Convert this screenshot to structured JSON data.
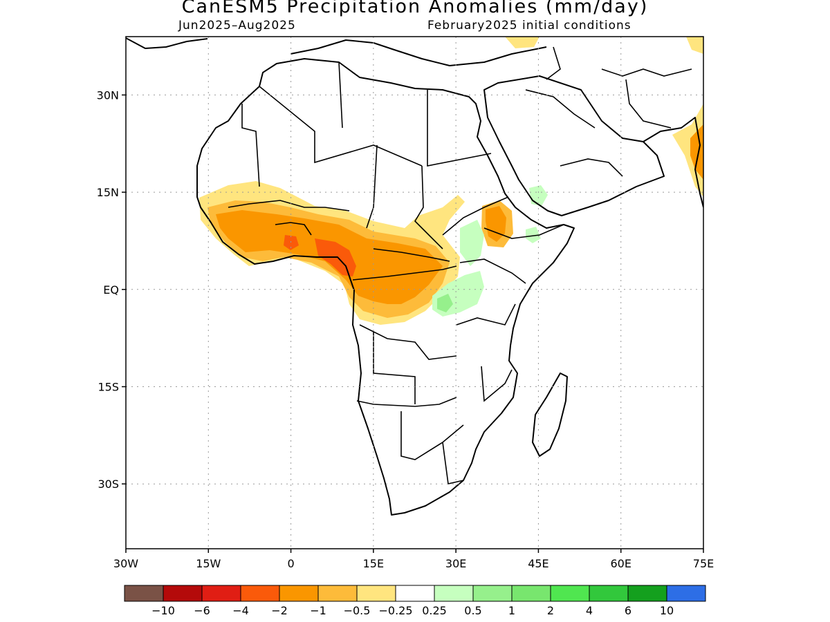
{
  "title": "CanESM5 Precipitation Anomalies (mm/day)",
  "subtitle_left": "Jun2025–Aug2025",
  "subtitle_right": "February2025 initial conditions",
  "map": {
    "projection": "equirectangular",
    "lon_range": [
      -30,
      75
    ],
    "lat_range": [
      -40,
      39
    ],
    "x_ticks": [
      "30W",
      "15W",
      "0",
      "15E",
      "30E",
      "45E",
      "60E",
      "75E"
    ],
    "y_ticks": [
      "30N",
      "15N",
      "EQ",
      "15S",
      "30S"
    ],
    "grid": "dotted"
  },
  "colorbar": {
    "colors": [
      "#7a5246",
      "#b40a0a",
      "#e01e14",
      "#fa5a0a",
      "#fa9600",
      "#fdbb3a",
      "#ffe57f",
      "#ffffff",
      "#c6ffbf",
      "#96f08c",
      "#78e66e",
      "#50e650",
      "#32c83c",
      "#14a01e",
      "#2d6ee6"
    ],
    "labels": [
      "−10",
      "−6",
      "−4",
      "−2",
      "−1",
      "−0.5",
      "−0.25",
      "0.25",
      "0.5",
      "1",
      "2",
      "4",
      "6",
      "10"
    ]
  }
}
